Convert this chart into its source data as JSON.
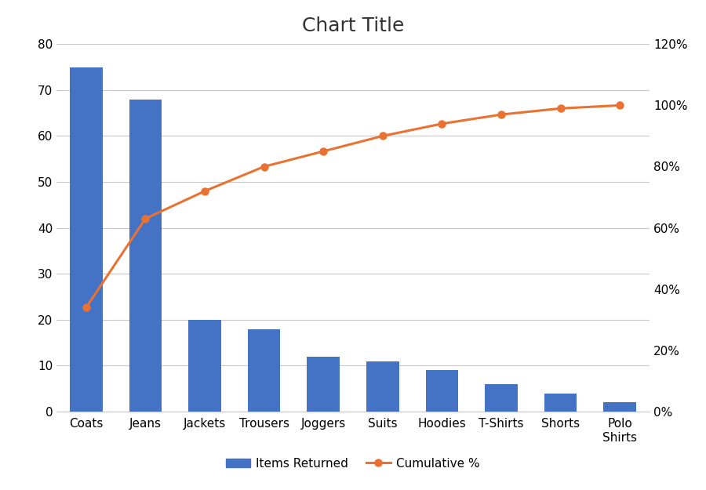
{
  "title": "Chart Title",
  "categories": [
    "Coats",
    "Jeans",
    "Jackets",
    "Trousers",
    "Joggers",
    "Suits",
    "Hoodies",
    "T-Shirts",
    "Shorts",
    "Polo\nShirts"
  ],
  "bar_values": [
    75,
    68,
    20,
    18,
    12,
    11,
    9,
    6,
    4,
    2
  ],
  "cumulative_pct": [
    34,
    63,
    72,
    80,
    85,
    90,
    94,
    97,
    99,
    100
  ],
  "bar_color": "#4472C4",
  "line_color": "#E97132",
  "bar_label": "Items Returned",
  "line_label": "Cumulative %",
  "ylim_left": [
    0,
    80
  ],
  "ylim_right": [
    0,
    120
  ],
  "yticks_left": [
    0,
    10,
    20,
    30,
    40,
    50,
    60,
    70,
    80
  ],
  "yticks_right": [
    0,
    20,
    40,
    60,
    80,
    100,
    120
  ],
  "ytick_labels_right": [
    "0%",
    "20%",
    "40%",
    "60%",
    "80%",
    "100%",
    "120%"
  ],
  "bg_color": "#FFFFFF",
  "grid_color": "#C8C8C8",
  "title_fontsize": 18,
  "tick_fontsize": 11,
  "legend_fontsize": 11,
  "bar_width": 0.55
}
